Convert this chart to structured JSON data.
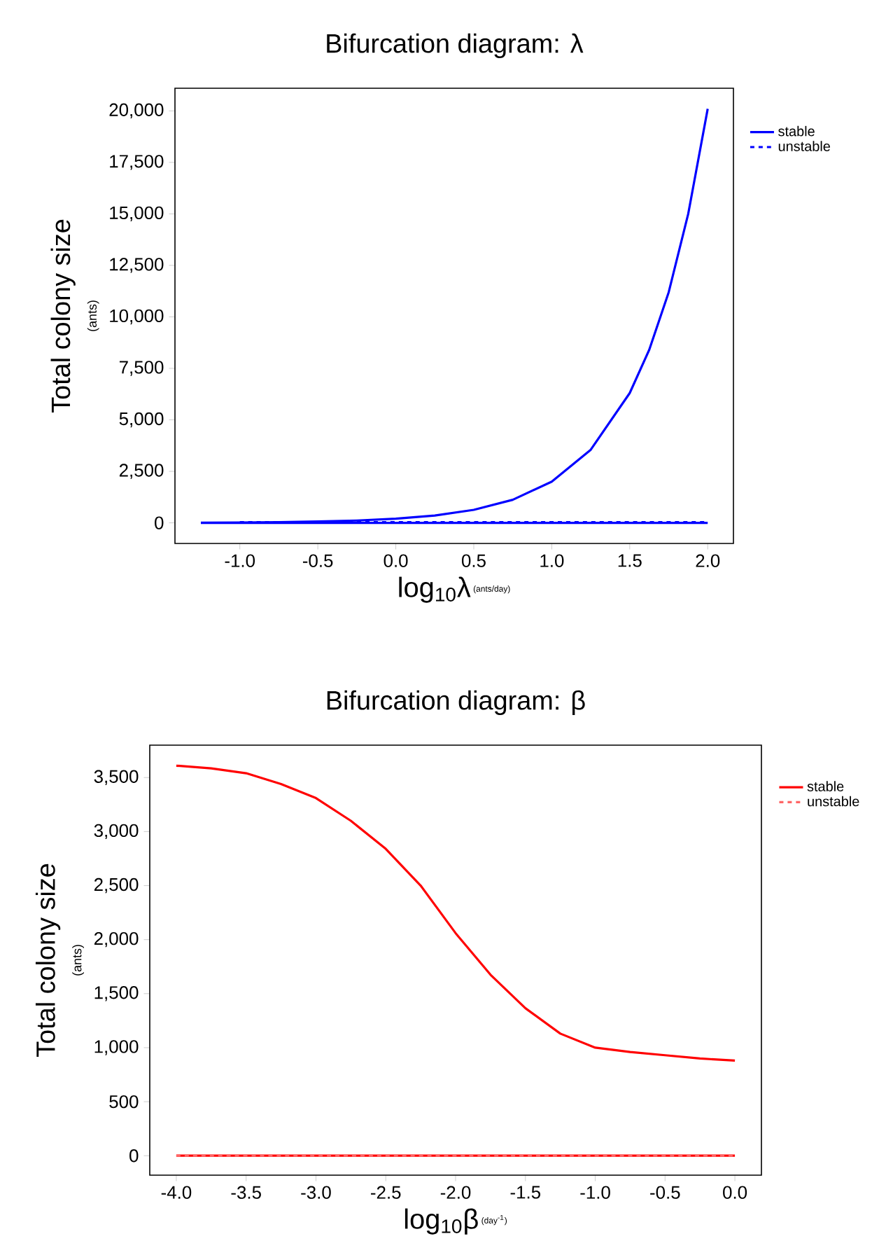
{
  "chart_data": [
    {
      "type": "line",
      "title": "Bifurcation diagram: λ",
      "xlabel": "log$_{10}$λ",
      "ylabel": "Total colony size",
      "annotations": [
        "(ants)",
        "(ants/day)"
      ],
      "xlim": [
        -1.416,
        2.165
      ],
      "ylim": [
        -1000,
        21100
      ],
      "xticks": [
        {
          "value": -1,
          "label": "-1.0"
        },
        {
          "value": -0.5,
          "label": "-0.5"
        },
        {
          "value": 0,
          "label": "0.0"
        },
        {
          "value": 0.5,
          "label": "0.5"
        },
        {
          "value": 1,
          "label": "1.0"
        },
        {
          "value": 1.5,
          "label": "1.5"
        },
        {
          "value": 2,
          "label": "2.0"
        }
      ],
      "yticks": [
        {
          "value": 0,
          "label": "0"
        },
        {
          "value": 2500,
          "label": "2,500"
        },
        {
          "value": 5000,
          "label": "5,000"
        },
        {
          "value": 7500,
          "label": "7,500"
        },
        {
          "value": 10000,
          "label": "10,000"
        },
        {
          "value": 12500,
          "label": "12,500"
        },
        {
          "value": 15000,
          "label": "15,000"
        },
        {
          "value": 17500,
          "label": "17,500"
        },
        {
          "value": 20000,
          "label": "20,000"
        }
      ],
      "legend": "right",
      "marker": "none",
      "series": [
        {
          "name": "stable",
          "color": "#0000ff",
          "line_style": "solid",
          "x": [
            -1.25,
            -1.0,
            -0.75,
            -0.5,
            -0.25,
            0,
            0.25,
            0.5,
            0.75,
            1.0,
            1.25,
            1.5,
            1.625,
            1.75,
            1.875,
            2.0
          ],
          "values": [
            11,
            20,
            36,
            63,
            112,
            200,
            355,
            630,
            1120,
            2000,
            3550,
            6300,
            8400,
            11200,
            15000,
            20100
          ]
        },
        {
          "color": "#0000ff",
          "line_style": "solid",
          "x": [
            -1.25,
            2.0
          ],
          "values": [
            0,
            0
          ]
        },
        {
          "name": "unstable",
          "color": "#0000ff",
          "line_style": "dashed",
          "x": [
            -1.0,
            2.0
          ],
          "values": [
            30,
            30
          ]
        }
      ]
    },
    {
      "type": "line",
      "title": "Bifurcation diagram: β",
      "xlabel": "log$_{10}$β",
      "ylabel": "Total colony size",
      "annotations": [
        "(ants)",
        "(day$^{-1}$)"
      ],
      "xlim": [
        -4.19,
        0.19
      ],
      "ylim": [
        -180,
        3800
      ],
      "xticks": [
        {
          "value": -4,
          "label": "-4.0"
        },
        {
          "value": -3.5,
          "label": "-3.5"
        },
        {
          "value": -3,
          "label": "-3.0"
        },
        {
          "value": -2.5,
          "label": "-2.5"
        },
        {
          "value": -2,
          "label": "-2.0"
        },
        {
          "value": -1.5,
          "label": "-1.5"
        },
        {
          "value": -1,
          "label": "-1.0"
        },
        {
          "value": -0.5,
          "label": "-0.5"
        },
        {
          "value": 0,
          "label": "0.0"
        }
      ],
      "yticks": [
        0,
        500,
        {
          "value": 1000,
          "label": "1,000"
        },
        {
          "value": 1500,
          "label": "1,500"
        },
        {
          "value": 2000,
          "label": "2,000"
        },
        {
          "value": 2500,
          "label": "2,500"
        },
        {
          "value": 3000,
          "label": "3,000"
        },
        {
          "value": 3500,
          "label": "3,500"
        }
      ],
      "legend": "right",
      "marker": "none",
      "series": [
        {
          "name": "stable",
          "color": "#ff0000",
          "line_style": "solid",
          "x": [
            -4.0,
            -3.75,
            -3.5,
            -3.25,
            -3.0,
            -2.75,
            -2.5,
            -2.25,
            -2.0,
            -1.75,
            -1.5,
            -1.25,
            -1.0,
            -0.75,
            -0.5,
            -0.25,
            0.0
          ],
          "values": [
            3610,
            3585,
            3540,
            3440,
            3310,
            3100,
            2840,
            2500,
            2060,
            1675,
            1365,
            1130,
            1000,
            960,
            930,
            900,
            880
          ]
        },
        {
          "color": "#ff0000",
          "line_style": "solid",
          "x": [
            -4.0,
            0.0
          ],
          "values": [
            0,
            0
          ]
        },
        {
          "name": "unstable",
          "color": "#ff6666",
          "line_style": "dashed",
          "x": [
            -4.0,
            0.0
          ],
          "values": [
            0,
            0
          ]
        }
      ]
    }
  ]
}
